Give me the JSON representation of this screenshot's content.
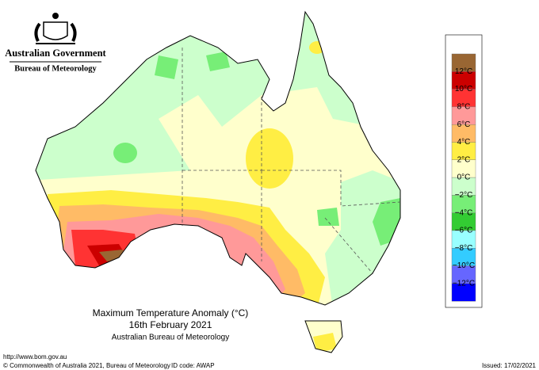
{
  "header": {
    "government": "Australian Government",
    "bureau": "Bureau of Meteorology"
  },
  "legend": {
    "colors": [
      "#996633",
      "#cc0000",
      "#ff3333",
      "#ff9999",
      "#ffbb66",
      "#ffee44",
      "#ffffcc",
      "#ccffcc",
      "#77ee77",
      "#33cc33",
      "#99ffff",
      "#33ccff",
      "#6666ff",
      "#0000ff"
    ],
    "labels": [
      "12°C",
      "10°C",
      "8°C",
      "6°C",
      "4°C",
      "2°C",
      "0°C",
      "−2°C",
      "−4°C",
      "−6°C",
      "−8°C",
      "−10°C",
      "−12°C"
    ]
  },
  "title": {
    "line1": "Maximum Temperature Anomaly (°C)",
    "line2": "16th February 2021",
    "line3": "Australian Bureau of Meteorology"
  },
  "footer": {
    "url": "http://www.bom.gov.au",
    "copyright": "© Commonwealth of Australia 2021, Bureau of Meteorology",
    "id_code": "ID code: AWAP",
    "issued": "Issued: 17/02/2021"
  }
}
